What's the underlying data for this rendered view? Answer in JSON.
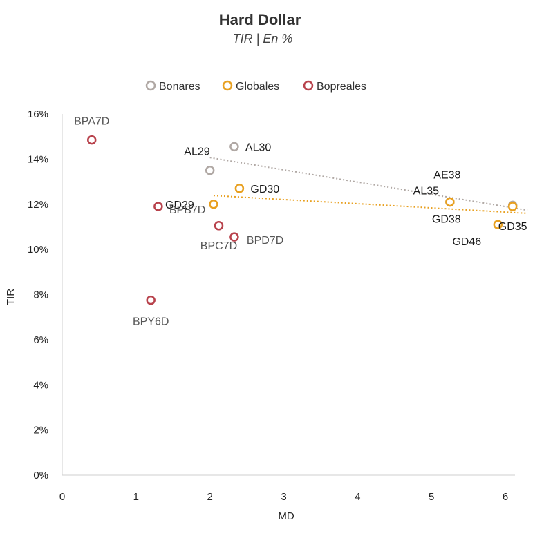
{
  "chart_data": {
    "type": "scatter",
    "title": "Hard Dollar",
    "subtitle": "TIR | En %",
    "xlabel": "MD",
    "ylabel": "TIR",
    "xlim": [
      0,
      6.3
    ],
    "ylim": [
      0,
      16
    ],
    "x_ticks": [
      "0",
      "1",
      "2",
      "3",
      "4",
      "5",
      "6"
    ],
    "y_ticks": [
      "0%",
      "2%",
      "4%",
      "6%",
      "8%",
      "10%",
      "12%",
      "14%",
      "16%"
    ],
    "grid": false,
    "legend_position": "top",
    "series": [
      {
        "name": "Bonares",
        "color": "#b0a8a4",
        "label_color": "#1a1a1a",
        "trendline": true,
        "points": [
          {
            "label": "AL29",
            "x": 2.0,
            "y": 13.5
          },
          {
            "label": "AL30",
            "x": 2.33,
            "y": 14.55
          },
          {
            "label": "AE38",
            "x": 5.25,
            "y": 12.1
          },
          {
            "label": "AL35",
            "x": 6.1,
            "y": 11.95
          }
        ]
      },
      {
        "name": "Globales",
        "color": "#e8a020",
        "label_color": "#1a1a1a",
        "trendline": true,
        "points": [
          {
            "label": "GD29",
            "x": 2.05,
            "y": 12.0
          },
          {
            "label": "GD30",
            "x": 2.4,
            "y": 12.7
          },
          {
            "label": "GD38",
            "x": 5.25,
            "y": 12.1
          },
          {
            "label": "GD46",
            "x": 5.9,
            "y": 11.1
          },
          {
            "label": "GD35",
            "x": 6.1,
            "y": 11.9
          }
        ]
      },
      {
        "name": "Bopreales",
        "color": "#b8424c",
        "label_color": "#555555",
        "trendline": false,
        "points": [
          {
            "label": "BPA7D",
            "x": 0.4,
            "y": 14.85
          },
          {
            "label": "BPB7D",
            "x": 1.3,
            "y": 11.9
          },
          {
            "label": "BPC7D",
            "x": 2.12,
            "y": 11.05
          },
          {
            "label": "BPD7D",
            "x": 2.33,
            "y": 10.55
          },
          {
            "label": "BPY6D",
            "x": 1.2,
            "y": 7.75
          }
        ]
      }
    ]
  }
}
